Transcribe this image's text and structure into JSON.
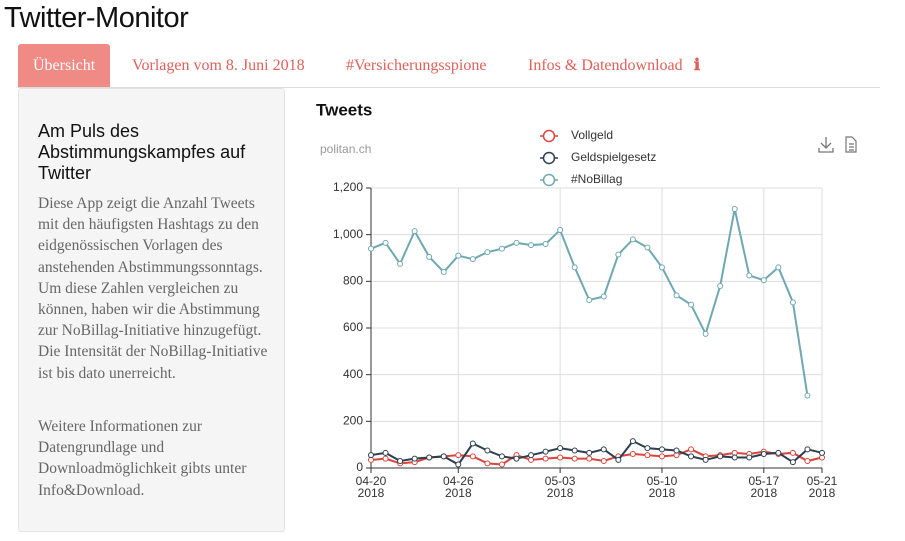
{
  "header": {
    "title": "Twitter-Monitor"
  },
  "tabs": [
    "Übersicht",
    "Vorlagen vom 8. Juni 2018",
    "#Versicherungsspione",
    "Infos & Datendownload"
  ],
  "sidebar": {
    "heading": "Am Puls des Abstimmungskampfes auf Twitter",
    "paragraphs": [
      "Diese App zeigt die Anzahl Tweets mit den häufigsten Hashtags zu den eidgenössischen Vorlagen des anstehenden Abstimmungssonntags. Um diese Zahlen vergleichen zu können, haben wir die Abstimmung zur NoBillag-Initiative hinzugefügt. Die Intensität der NoBillag-Initiative ist bis dato unerreicht.",
      "Weitere Informationen zur Datengrundlage und Downloadmöglichkeit gibts unter Info&Download."
    ]
  },
  "chart_data": {
    "type": "line",
    "title": "Tweets",
    "source": "politan.ch",
    "x": [
      "2018-04-20",
      "2018-04-21",
      "2018-04-22",
      "2018-04-23",
      "2018-04-24",
      "2018-04-25",
      "2018-04-26",
      "2018-04-27",
      "2018-04-28",
      "2018-04-29",
      "2018-04-30",
      "2018-05-01",
      "2018-05-02",
      "2018-05-03",
      "2018-05-04",
      "2018-05-05",
      "2018-05-06",
      "2018-05-07",
      "2018-05-08",
      "2018-05-09",
      "2018-05-10",
      "2018-05-11",
      "2018-05-12",
      "2018-05-13",
      "2018-05-14",
      "2018-05-15",
      "2018-05-16",
      "2018-05-17",
      "2018-05-18",
      "2018-05-19",
      "2018-05-20",
      "2018-05-21"
    ],
    "series": [
      {
        "name": "Vollgeld",
        "color": "#d9453b",
        "values": [
          35,
          40,
          20,
          25,
          45,
          50,
          55,
          50,
          20,
          15,
          55,
          35,
          40,
          45,
          40,
          40,
          30,
          50,
          60,
          55,
          50,
          55,
          80,
          50,
          55,
          65,
          60,
          70,
          60,
          65,
          30,
          45
        ]
      },
      {
        "name": "Geldspielgesetz",
        "color": "#2c3e50",
        "values": [
          55,
          65,
          30,
          40,
          45,
          50,
          15,
          105,
          75,
          50,
          40,
          55,
          70,
          85,
          75,
          65,
          80,
          35,
          115,
          85,
          80,
          75,
          50,
          35,
          50,
          45,
          45,
          60,
          65,
          25,
          80,
          65
        ]
      },
      {
        "name": "#NoBillag",
        "color": "#6fa8b3",
        "values": [
          940,
          965,
          875,
          1015,
          905,
          840,
          910,
          895,
          925,
          940,
          965,
          955,
          960,
          1020,
          860,
          720,
          735,
          915,
          980,
          945,
          860,
          740,
          700,
          575,
          780,
          1110,
          825,
          805,
          860,
          710,
          310,
          null
        ]
      }
    ],
    "xlim": [
      "2018-04-20",
      "2018-05-21"
    ],
    "xticks": [
      {
        "value": "2018-04-20",
        "label": [
          "04-20",
          "2018"
        ]
      },
      {
        "value": "2018-04-26",
        "label": [
          "04-26",
          "2018"
        ]
      },
      {
        "value": "2018-05-03",
        "label": [
          "05-03",
          "2018"
        ]
      },
      {
        "value": "2018-05-10",
        "label": [
          "05-10",
          "2018"
        ]
      },
      {
        "value": "2018-05-17",
        "label": [
          "05-17",
          "2018"
        ]
      },
      {
        "value": "2018-05-21",
        "label": [
          "05-21",
          "2018"
        ]
      }
    ],
    "ylim": [
      0,
      1200
    ],
    "yticks": [
      0,
      200,
      400,
      600,
      800,
      {
        "value": 1000,
        "label": "1,000"
      },
      {
        "value": 1200,
        "label": "1,200"
      }
    ],
    "grid": true
  }
}
